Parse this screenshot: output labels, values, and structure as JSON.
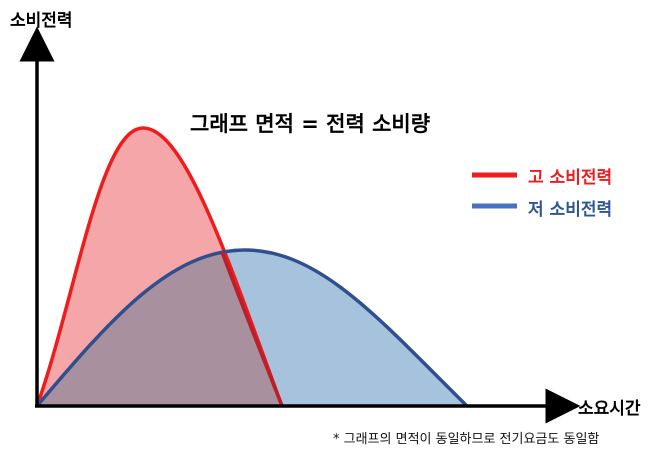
{
  "title": "그래프 면적 = 전력 소비량",
  "axes": {
    "y_label": "소비전력",
    "x_label": "소요시간"
  },
  "legend": [
    {
      "name": "고 소비전력",
      "color": "#ee1c1c"
    },
    {
      "name": "저 소비전력",
      "color": "#4472c4"
    }
  ],
  "footnote": "* 그래프의 면적이 동일하므로 전기요금도 동일함",
  "colors": {
    "high_line": "#ee1c1c",
    "high_fill": "#f4a6a8",
    "low_line": "#2f4f8f",
    "low_fill": "#a7c2dc",
    "overlap_fill": "#a8909f",
    "axis": "#000000"
  }
}
